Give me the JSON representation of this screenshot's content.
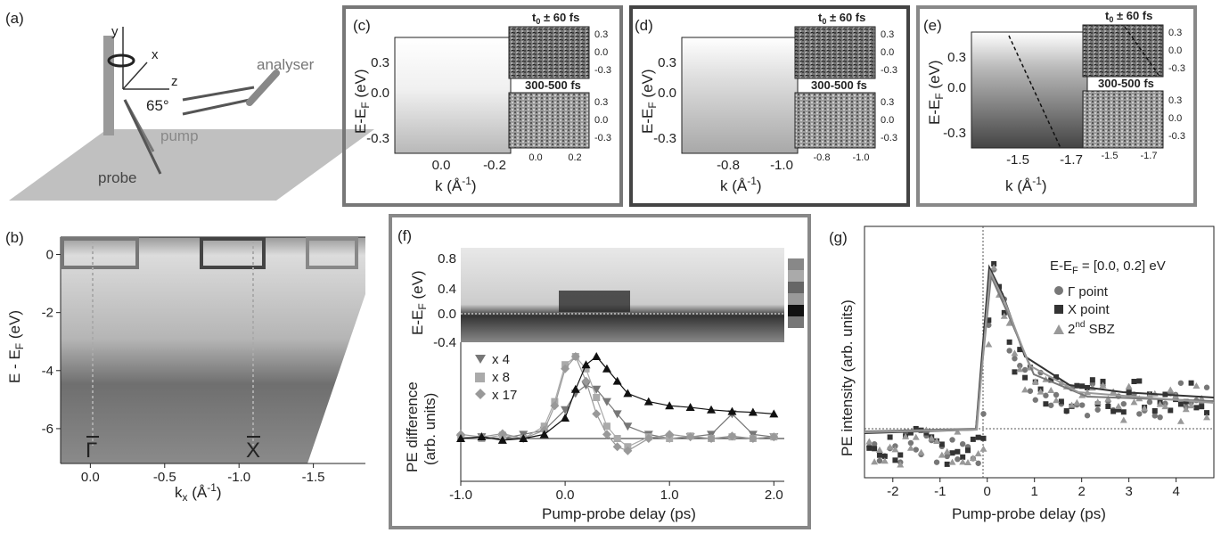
{
  "panels": {
    "a": {
      "label": "(a)",
      "axes": [
        "y",
        "x",
        "z"
      ],
      "angle": "65°",
      "analyser": "analyser",
      "pump": "pump",
      "probe": "probe"
    },
    "b": {
      "label": "(b)",
      "ylabel_main": "E - E",
      "ylabel_sub": "F",
      "ylabel_tail": " (eV)",
      "xlabel_main": "k",
      "xlabel_sub": "x",
      "xlabel_tail": " (Å",
      "xlabel_sup": "-1",
      "xlabel_close": ")",
      "gamma": "Γ",
      "xpoint": "X"
    },
    "c": {
      "label": "(c)",
      "ylabel": "E-E",
      "ylabel_sub": "F",
      "ylabel_tail": " (eV)",
      "xlabel": "k (Å",
      "xlabel_sup": "-1",
      "xlabel_close": ")",
      "inset_top": "t",
      "inset_top_sub": "0",
      "inset_top_tail": " ± 60 fs",
      "inset_bottom": "300-500 fs"
    },
    "d": {
      "label": "(d)",
      "ylabel": "E-E",
      "ylabel_sub": "F",
      "ylabel_tail": " (eV)",
      "xlabel": "k (Å",
      "xlabel_sup": "-1",
      "xlabel_close": ")",
      "inset_top": "t",
      "inset_top_sub": "0",
      "inset_top_tail": " ± 60 fs",
      "inset_bottom": "300-500 fs"
    },
    "e": {
      "label": "(e)",
      "ylabel": "E-E",
      "ylabel_sub": "F",
      "ylabel_tail": " (eV)",
      "xlabel": "k (Å",
      "xlabel_sup": "-1",
      "xlabel_close": ")",
      "inset_top": "t",
      "inset_top_sub": "0",
      "inset_top_tail": " ± 60 fs",
      "inset_bottom": "300-500 fs"
    },
    "f": {
      "label": "(f)",
      "ylabel_top": "E-E",
      "ylabel_top_sub": "F",
      "ylabel_top_tail": " (eV)",
      "ylabel_bottom1": "PE difference",
      "ylabel_bottom2": "(arb. units)",
      "xlabel": "Pump-probe delay (ps)",
      "legend": [
        "x 4",
        "x 8",
        "x 17"
      ]
    },
    "g": {
      "label": "(g)",
      "ylabel": "PE intensity (arb. units)",
      "xlabel": "Pump-probe delay (ps)",
      "legend_title": "E-E",
      "legend_title_sub": "F",
      "legend_title_tail": " = [0.0, 0.2] eV",
      "legend": [
        "Γ point",
        "X point",
        "2",
        "nd",
        " SBZ"
      ]
    }
  },
  "chart_data": [
    {
      "id": "b",
      "type": "heatmap",
      "x_ticks": [
        "0.0",
        "-0.5",
        "-1.0",
        "-1.5"
      ],
      "x_tick_values": [
        0.0,
        -0.5,
        -1.0,
        -1.5
      ],
      "y_ticks": [
        "0",
        "-2",
        "-4",
        "-6"
      ],
      "y_tick_values": [
        0,
        -2,
        -4,
        -6
      ],
      "xlim": [
        0.2,
        -1.85
      ],
      "ylim": [
        -7.2,
        0.6
      ]
    },
    {
      "id": "c",
      "type": "heatmap",
      "x_ticks": [
        "0.0",
        "-0.2"
      ],
      "x_tick_values": [
        0.0,
        -0.2
      ],
      "y_ticks": [
        "0.3",
        "0.0",
        "-0.3"
      ],
      "y_tick_values": [
        0.3,
        0.0,
        -0.3
      ],
      "inset_x_ticks": [
        "0.0",
        "0.2"
      ],
      "inset_y_ticks": [
        "0.3",
        "0.0",
        "-0.3"
      ]
    },
    {
      "id": "d",
      "type": "heatmap",
      "x_ticks": [
        "-0.8",
        "-1.0"
      ],
      "x_tick_values": [
        -0.8,
        -1.0
      ],
      "y_ticks": [
        "0.3",
        "0.0",
        "-0.3"
      ],
      "y_tick_values": [
        0.3,
        0.0,
        -0.3
      ],
      "inset_x_ticks": [
        "-0.8",
        "-1.0"
      ],
      "inset_y_ticks": [
        "0.3",
        "0.0",
        "-0.3"
      ]
    },
    {
      "id": "e",
      "type": "heatmap",
      "x_ticks": [
        "-1.5",
        "-1.7"
      ],
      "x_tick_values": [
        -1.5,
        -1.7
      ],
      "y_ticks": [
        "0.3",
        "0.0",
        "-0.3"
      ],
      "y_tick_values": [
        0.3,
        0.0,
        -0.3
      ],
      "inset_x_ticks": [
        "-1.5",
        "-1.7"
      ],
      "inset_y_ticks": [
        "0.3",
        "0.0",
        "-0.3"
      ]
    },
    {
      "id": "f",
      "type": "line",
      "x_ticks": [
        "-1.0",
        "0.0",
        "1.0",
        "2.0"
      ],
      "x_tick_values": [
        -1.0,
        0.0,
        1.0,
        2.0
      ],
      "xlim": [
        -1.0,
        2.1
      ],
      "top_y_ticks": [
        "0.8",
        "0.4",
        "0.0",
        "-0.4"
      ],
      "top_y_tick_values": [
        0.8,
        0.4,
        0.0,
        -0.4
      ],
      "series": [
        {
          "name": "x 4",
          "marker": "triangle-down",
          "color": "#777777",
          "x": [
            -1.0,
            -0.8,
            -0.6,
            -0.4,
            -0.2,
            0.0,
            0.1,
            0.2,
            0.3,
            0.4,
            0.5,
            0.6,
            0.8,
            1.0,
            1.2,
            1.4,
            1.6,
            1.8,
            2.0
          ],
          "y": [
            0.0,
            0.02,
            0.0,
            0.05,
            0.1,
            0.35,
            0.55,
            0.65,
            0.6,
            0.45,
            0.3,
            0.15,
            0.05,
            0.0,
            0.02,
            0.05,
            0.3,
            0.05,
            0.02
          ]
        },
        {
          "name": "x 8",
          "marker": "square",
          "color": "#aaaaaa",
          "x": [
            -1.0,
            -0.8,
            -0.6,
            -0.4,
            -0.2,
            -0.1,
            0.0,
            0.1,
            0.2,
            0.3,
            0.4,
            0.5,
            0.6,
            0.8,
            1.0,
            1.2,
            1.4,
            1.6,
            1.8,
            2.0
          ],
          "y": [
            0.02,
            0.0,
            0.04,
            0.0,
            0.15,
            0.45,
            0.9,
            1.0,
            0.85,
            0.5,
            0.15,
            0.0,
            -0.1,
            0.02,
            0.0,
            0.03,
            0.0,
            0.02,
            0.0,
            0.02
          ]
        },
        {
          "name": "x 17",
          "marker": "diamond",
          "color": "#999999",
          "x": [
            -1.0,
            -0.8,
            -0.6,
            -0.4,
            -0.2,
            -0.1,
            0.0,
            0.1,
            0.2,
            0.3,
            0.4,
            0.5,
            0.6,
            0.8,
            1.0,
            1.2,
            1.4,
            1.6,
            1.8,
            2.0
          ],
          "y": [
            0.05,
            0.02,
            0.06,
            0.0,
            0.1,
            0.4,
            0.85,
            1.0,
            0.7,
            0.3,
            0.05,
            -0.1,
            -0.15,
            0.0,
            0.05,
            0.02,
            0.0,
            0.03,
            0.0,
            0.02
          ]
        },
        {
          "name": "",
          "marker": "triangle-up",
          "color": "#111111",
          "x": [
            -1.0,
            -0.8,
            -0.6,
            -0.4,
            -0.2,
            0.0,
            0.1,
            0.2,
            0.3,
            0.4,
            0.5,
            0.6,
            0.8,
            1.0,
            1.2,
            1.4,
            1.6,
            1.8,
            2.0
          ],
          "y": [
            0.0,
            0.02,
            -0.02,
            0.0,
            0.05,
            0.25,
            0.6,
            0.9,
            1.0,
            0.85,
            0.7,
            0.55,
            0.45,
            0.4,
            0.38,
            0.35,
            0.33,
            0.32,
            0.3
          ]
        }
      ]
    },
    {
      "id": "g",
      "type": "scatter",
      "x_ticks": [
        "-2",
        "-1",
        "0",
        "1",
        "2",
        "3",
        "4"
      ],
      "x_tick_values": [
        -2,
        -1,
        0,
        1,
        2,
        3,
        4
      ],
      "xlim": [
        -2.6,
        4.8
      ],
      "ylim": [
        -0.15,
        1.05
      ],
      "series": [
        {
          "name": "Γ point",
          "marker": "circle",
          "color": "#777777"
        },
        {
          "name": "X point",
          "marker": "square",
          "color": "#333333"
        },
        {
          "name": "2nd SBZ",
          "marker": "triangle-up",
          "color": "#999999"
        }
      ]
    }
  ]
}
